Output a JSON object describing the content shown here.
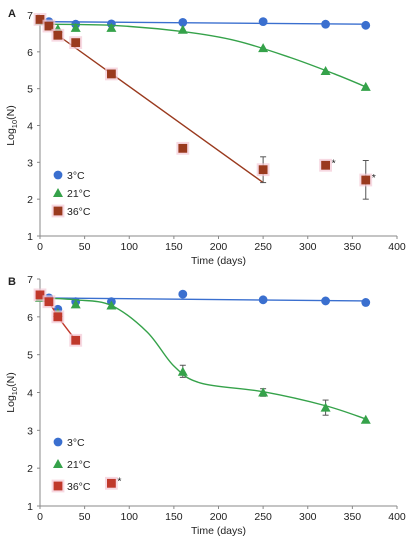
{
  "chart_data": [
    {
      "type": "scatter",
      "panel_label": "A",
      "xlabel": "Time (days)",
      "ylabel": "Log",
      "ylabel_sub": "10",
      "ylabel_tail": "(N)",
      "xlim": [
        0,
        400
      ],
      "ylim": [
        1,
        7
      ],
      "xticks": [
        "0",
        "50",
        "100",
        "150",
        "200",
        "250",
        "300",
        "350",
        "400"
      ],
      "yticks": [
        "1",
        "2",
        "3",
        "4",
        "5",
        "6",
        "7"
      ],
      "legend_position": "bottom-left",
      "series": [
        {
          "name": "3°C",
          "marker": "circle",
          "color": "#3a6fcf",
          "points": [
            [
              0,
              6.88
            ],
            [
              10,
              6.82
            ],
            [
              40,
              6.75
            ],
            [
              80,
              6.76
            ],
            [
              160,
              6.8
            ],
            [
              250,
              6.82
            ],
            [
              320,
              6.75
            ],
            [
              365,
              6.72
            ]
          ],
          "fit": [
            [
              0,
              6.82
            ],
            [
              365,
              6.75
            ]
          ]
        },
        {
          "name": "21°C",
          "marker": "triangle",
          "color": "#35a24a",
          "points": [
            [
              0,
              6.85
            ],
            [
              20,
              6.62
            ],
            [
              40,
              6.65
            ],
            [
              80,
              6.65
            ],
            [
              160,
              6.6
            ],
            [
              250,
              6.1
            ],
            [
              320,
              5.48
            ],
            [
              365,
              5.05
            ]
          ],
          "fit": [
            [
              0,
              6.75
            ],
            [
              80,
              6.72
            ],
            [
              160,
              6.55
            ],
            [
              220,
              6.3
            ],
            [
              280,
              5.85
            ],
            [
              330,
              5.4
            ],
            [
              365,
              5.05
            ]
          ]
        },
        {
          "name": "36°C",
          "marker": "square",
          "color": "#9a3a1e",
          "points": [
            [
              0,
              6.88
            ],
            [
              10,
              6.7
            ],
            [
              20,
              6.45
            ],
            [
              40,
              6.25
            ],
            [
              80,
              5.4
            ],
            [
              160,
              3.38
            ],
            [
              250,
              2.8
            ],
            [
              320,
              2.92
            ],
            [
              365,
              2.52
            ]
          ],
          "error_bars": [
            [
              250,
              2.45,
              3.15
            ],
            [
              365,
              2.0,
              3.05
            ]
          ],
          "asterisk_x": [
            320,
            365
          ],
          "fit": [
            [
              0,
              6.88
            ],
            [
              20,
              6.45
            ],
            [
              250,
              2.45
            ]
          ]
        }
      ],
      "asterisk": "*"
    },
    {
      "type": "scatter",
      "panel_label": "B",
      "xlabel": "Time (days)",
      "ylabel": "Log",
      "ylabel_sub": "10",
      "ylabel_tail": "(N)",
      "xlim": [
        0,
        400
      ],
      "ylim": [
        1,
        7
      ],
      "xticks": [
        "0",
        "50",
        "100",
        "150",
        "200",
        "250",
        "300",
        "350",
        "400"
      ],
      "yticks": [
        "1",
        "2",
        "3",
        "4",
        "5",
        "6",
        "7"
      ],
      "legend_position": "bottom-left",
      "series": [
        {
          "name": "3°C",
          "marker": "circle",
          "color": "#3a6fcf",
          "points": [
            [
              0,
              6.55
            ],
            [
              10,
              6.5
            ],
            [
              20,
              6.2
            ],
            [
              40,
              6.4
            ],
            [
              80,
              6.4
            ],
            [
              160,
              6.6
            ],
            [
              250,
              6.45
            ],
            [
              320,
              6.42
            ],
            [
              365,
              6.38
            ]
          ],
          "fit": [
            [
              0,
              6.5
            ],
            [
              365,
              6.42
            ]
          ]
        },
        {
          "name": "21°C",
          "marker": "triangle",
          "color": "#35a24a",
          "points": [
            [
              0,
              6.5
            ],
            [
              20,
              6.1
            ],
            [
              40,
              6.33
            ],
            [
              80,
              6.3
            ],
            [
              160,
              4.55
            ],
            [
              250,
              4.0
            ],
            [
              320,
              3.6
            ],
            [
              365,
              3.28
            ]
          ],
          "error_bars": [
            [
              160,
              4.4,
              4.72
            ],
            [
              250,
              3.9,
              4.1
            ],
            [
              320,
              3.4,
              3.8
            ]
          ],
          "fit": [
            [
              0,
              6.5
            ],
            [
              40,
              6.45
            ],
            [
              80,
              6.3
            ],
            [
              120,
              5.6
            ],
            [
              150,
              4.7
            ],
            [
              180,
              4.25
            ],
            [
              250,
              4.02
            ],
            [
              320,
              3.65
            ],
            [
              365,
              3.3
            ]
          ]
        },
        {
          "name": "36°C",
          "marker": "square",
          "color": "#c0392b",
          "points": [
            [
              0,
              6.58
            ],
            [
              10,
              6.4
            ],
            [
              20,
              6.0
            ],
            [
              40,
              5.38
            ],
            [
              80,
              1.6
            ]
          ],
          "asterisk_x": [
            80
          ],
          "fit": [
            [
              0,
              6.58
            ],
            [
              10,
              6.4
            ],
            [
              20,
              6.0
            ],
            [
              40,
              5.38
            ]
          ]
        }
      ],
      "asterisk": "*"
    }
  ]
}
